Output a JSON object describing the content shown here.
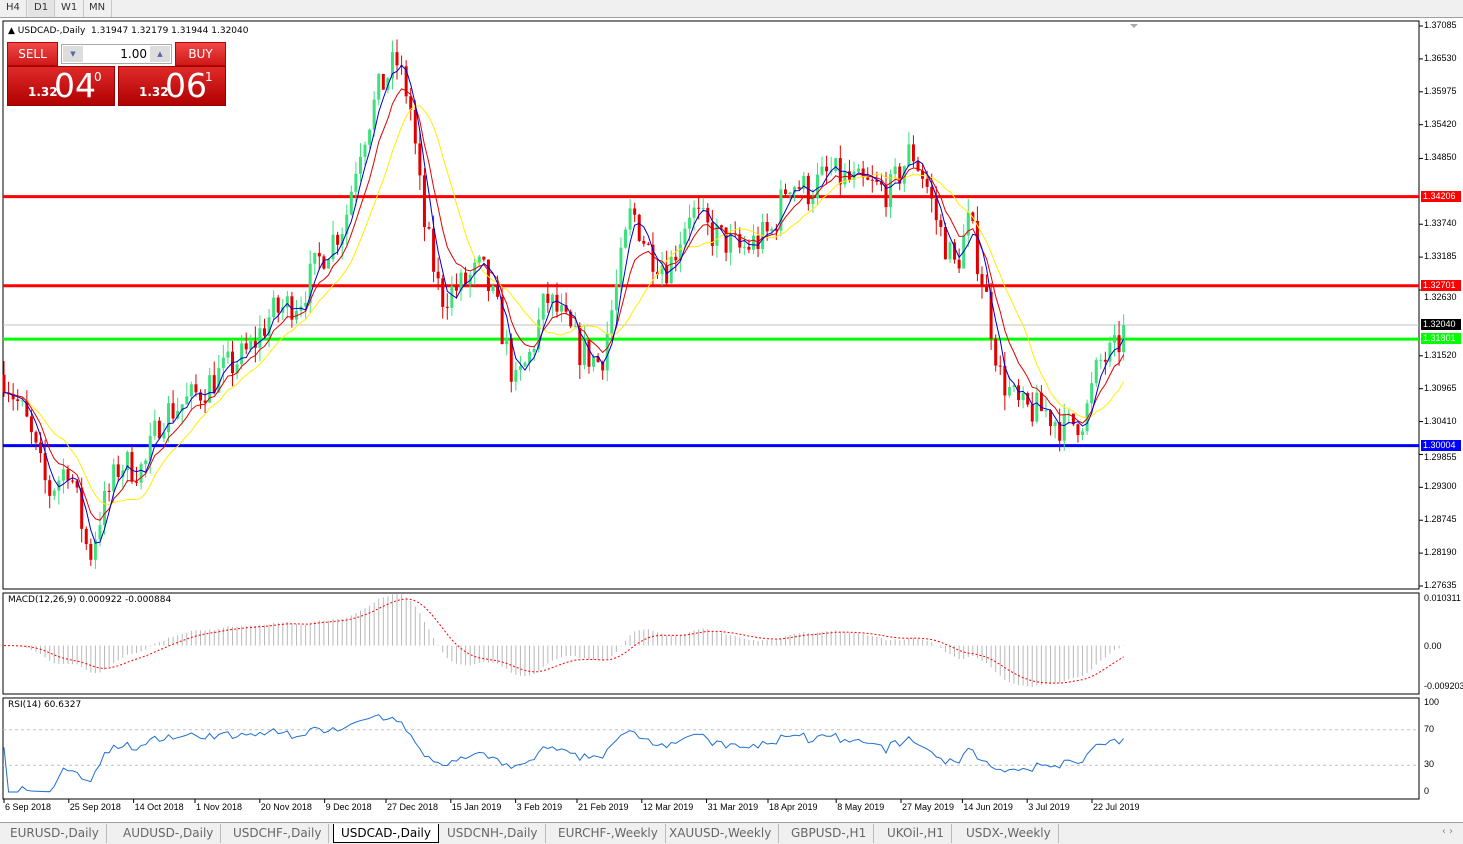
{
  "timeframes": [
    {
      "label": "H4",
      "active": false
    },
    {
      "label": "D1",
      "active": true
    },
    {
      "label": "W1",
      "active": false
    },
    {
      "label": "MN",
      "active": false
    }
  ],
  "symbol": {
    "title": "USDCAD-,Daily",
    "ohlc": "1.31947 1.32179 1.31944 1.32040"
  },
  "trade_panel": {
    "sell_label": "SELL",
    "buy_label": "BUY",
    "lot": "1.00",
    "sell": {
      "prefix": "1.32",
      "big": "04",
      "pip": "0"
    },
    "buy": {
      "prefix": "1.32",
      "big": "06",
      "pip": "1"
    }
  },
  "price_axis": {
    "max": 1.37085,
    "min": 1.27635,
    "ticks": [
      "1.37085",
      "1.36530",
      "1.35975",
      "1.35420",
      "1.34850",
      "1.33740",
      "1.33185",
      "1.32630",
      "1.31520",
      "1.30965",
      "1.30410",
      "1.29855",
      "1.29300",
      "1.28745",
      "1.28190",
      "1.27635"
    ]
  },
  "levels": [
    {
      "label": "1.34206",
      "value": 1.34206,
      "color": "#ff0000"
    },
    {
      "label": "1.32701",
      "value": 1.32701,
      "color": "#ff0000"
    },
    {
      "label": "1.31801",
      "value": 1.31801,
      "color": "#00ff00"
    },
    {
      "label": "1.30004",
      "value": 1.30004,
      "color": "#0000ff"
    }
  ],
  "current_price": {
    "label": "1.32040",
    "value": 1.3204
  },
  "macd": {
    "title": "MACD(12,26,9) 0.000922 -0.000884",
    "ticks": [
      "0.010311",
      "0.00",
      "-0.009203"
    ],
    "max": 0.010311,
    "min": -0.009203
  },
  "rsi": {
    "title": "RSI(14) 60.6327",
    "ticks": [
      "100",
      "70",
      "30",
      "0"
    ]
  },
  "dates": [
    {
      "label": "6 Sep 2018",
      "date": "2018-09-06"
    },
    {
      "label": "25 Sep 2018",
      "date": "2018-09-25"
    },
    {
      "label": "14 Oct 2018",
      "date": "2018-10-14"
    },
    {
      "label": "1 Nov 2018",
      "date": "2018-11-01"
    },
    {
      "label": "20 Nov 2018",
      "date": "2018-11-20"
    },
    {
      "label": "9 Dec 2018",
      "date": "2018-12-09"
    },
    {
      "label": "27 Dec 2018",
      "date": "2018-12-27"
    },
    {
      "label": "15 Jan 2019",
      "date": "2019-01-15"
    },
    {
      "label": "3 Feb 2019",
      "date": "2019-02-03"
    },
    {
      "label": "21 Feb 2019",
      "date": "2019-02-21"
    },
    {
      "label": "12 Mar 2019",
      "date": "2019-03-12"
    },
    {
      "label": "31 Mar 2019",
      "date": "2019-03-31"
    },
    {
      "label": "18 Apr 2019",
      "date": "2019-04-18"
    },
    {
      "label": "8 May 2019",
      "date": "2019-05-08"
    },
    {
      "label": "27 May 2019",
      "date": "2019-05-27"
    },
    {
      "label": "14 Jun 2019",
      "date": "2019-06-14"
    },
    {
      "label": "3 Jul 2019",
      "date": "2019-07-03"
    },
    {
      "label": "22 Jul 2019",
      "date": "2019-07-22"
    }
  ],
  "price_path": [
    [
      "2018-09-06",
      1.312
    ],
    [
      "2018-09-12",
      1.305
    ],
    [
      "2018-09-19",
      1.292
    ],
    [
      "2018-09-25",
      1.297
    ],
    [
      "2018-10-01",
      1.281
    ],
    [
      "2018-10-04",
      1.288
    ],
    [
      "2018-10-10",
      1.297
    ],
    [
      "2018-10-17",
      1.296
    ],
    [
      "2018-10-22",
      1.305
    ],
    [
      "2018-10-31",
      1.308
    ],
    [
      "2018-11-08",
      1.312
    ],
    [
      "2018-11-17",
      1.316
    ],
    [
      "2018-11-23",
      1.322
    ],
    [
      "2018-12-02",
      1.325
    ],
    [
      "2018-12-08",
      1.332
    ],
    [
      "2018-12-15",
      1.338
    ],
    [
      "2018-12-19",
      1.35
    ],
    [
      "2018-12-25",
      1.36
    ],
    [
      "2018-12-30",
      1.365
    ],
    [
      "2019-01-03",
      1.358
    ],
    [
      "2019-01-07",
      1.338
    ],
    [
      "2019-01-12",
      1.325
    ],
    [
      "2019-01-18",
      1.327
    ],
    [
      "2019-01-24",
      1.33
    ],
    [
      "2019-01-29",
      1.322
    ],
    [
      "2019-02-03",
      1.31
    ],
    [
      "2019-02-07",
      1.315
    ],
    [
      "2019-02-12",
      1.325
    ],
    [
      "2019-02-16",
      1.322
    ],
    [
      "2019-02-22",
      1.316
    ],
    [
      "2019-02-28",
      1.314
    ],
    [
      "2019-03-04",
      1.325
    ],
    [
      "2019-03-09",
      1.34
    ],
    [
      "2019-03-14",
      1.333
    ],
    [
      "2019-03-20",
      1.33
    ],
    [
      "2019-03-26",
      1.34
    ],
    [
      "2019-04-01",
      1.336
    ],
    [
      "2019-04-10",
      1.333
    ],
    [
      "2019-04-19",
      1.336
    ],
    [
      "2019-04-24",
      1.345
    ],
    [
      "2019-04-30",
      1.343
    ],
    [
      "2019-05-06",
      1.346
    ],
    [
      "2019-05-15",
      1.344
    ],
    [
      "2019-05-24",
      1.343
    ],
    [
      "2019-05-30",
      1.35
    ],
    [
      "2019-06-03",
      1.345
    ],
    [
      "2019-06-07",
      1.337
    ],
    [
      "2019-06-12",
      1.33
    ],
    [
      "2019-06-16",
      1.338
    ],
    [
      "2019-06-21",
      1.325
    ],
    [
      "2019-06-25",
      1.312
    ],
    [
      "2019-07-01",
      1.306
    ],
    [
      "2019-07-08",
      1.306
    ],
    [
      "2019-07-14",
      1.303
    ],
    [
      "2019-07-20",
      1.305
    ],
    [
      "2019-07-24",
      1.314
    ],
    [
      "2019-07-29",
      1.316
    ],
    [
      "2019-08-01",
      1.3204
    ]
  ],
  "colors": {
    "bull": "#3ce07c",
    "bear": "#e00000",
    "ma_fast": "#0000cc",
    "ma_mid": "#e00000",
    "ma_slow": "#ffee00",
    "macd_hist": "#b8b8b8",
    "macd_signal": "#ff0000",
    "rsi": "#1e6fd0"
  },
  "tabs": [
    {
      "label": "EURUSD-,Daily"
    },
    {
      "label": "AUDUSD-,Daily"
    },
    {
      "label": "USDCHF-,Daily"
    },
    {
      "label": "USDCAD-,Daily",
      "active": true
    },
    {
      "label": "USDCNH-,Daily"
    },
    {
      "label": "EURCHF-,Weekly"
    },
    {
      "label": "XAUUSD-,Weekly"
    },
    {
      "label": "GBPUSD-,H1"
    },
    {
      "label": "UKOil-,H1"
    },
    {
      "label": "USDX-,Weekly"
    }
  ],
  "tab_scroll": "‹ ›"
}
